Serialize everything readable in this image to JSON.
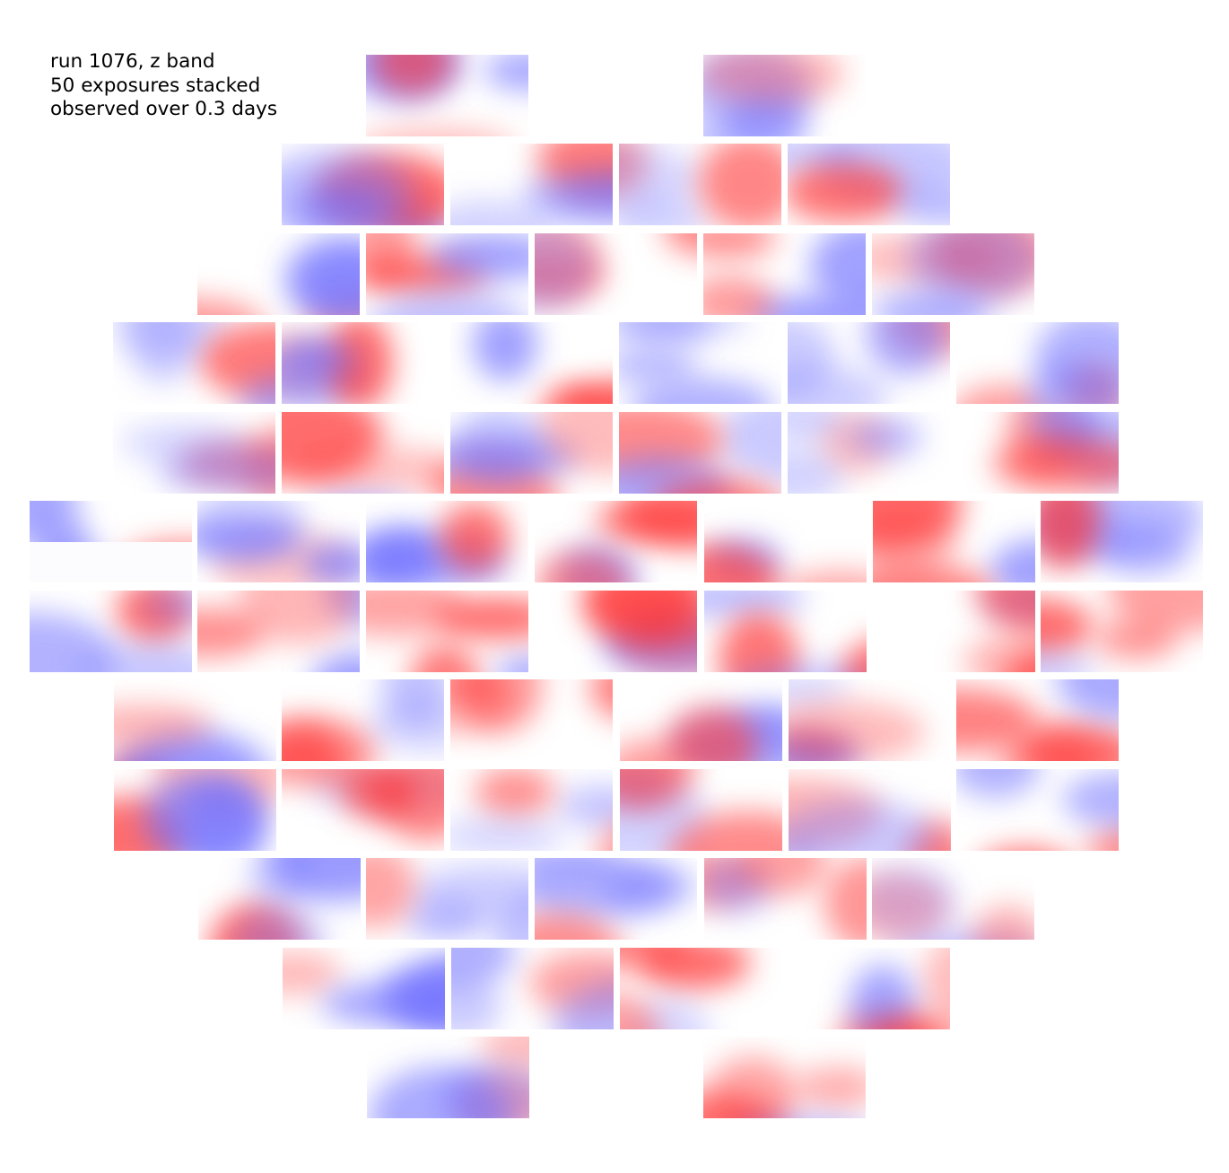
{
  "annotation": {
    "line1": "run 1076, z band",
    "line2": "50 exposures stacked",
    "line3": "observed over 0.3 days"
  },
  "colors": {
    "positive": "#ff2020",
    "negative": "#6e6eff",
    "zero": "#ffffff",
    "background": "#ffffff"
  }
}
